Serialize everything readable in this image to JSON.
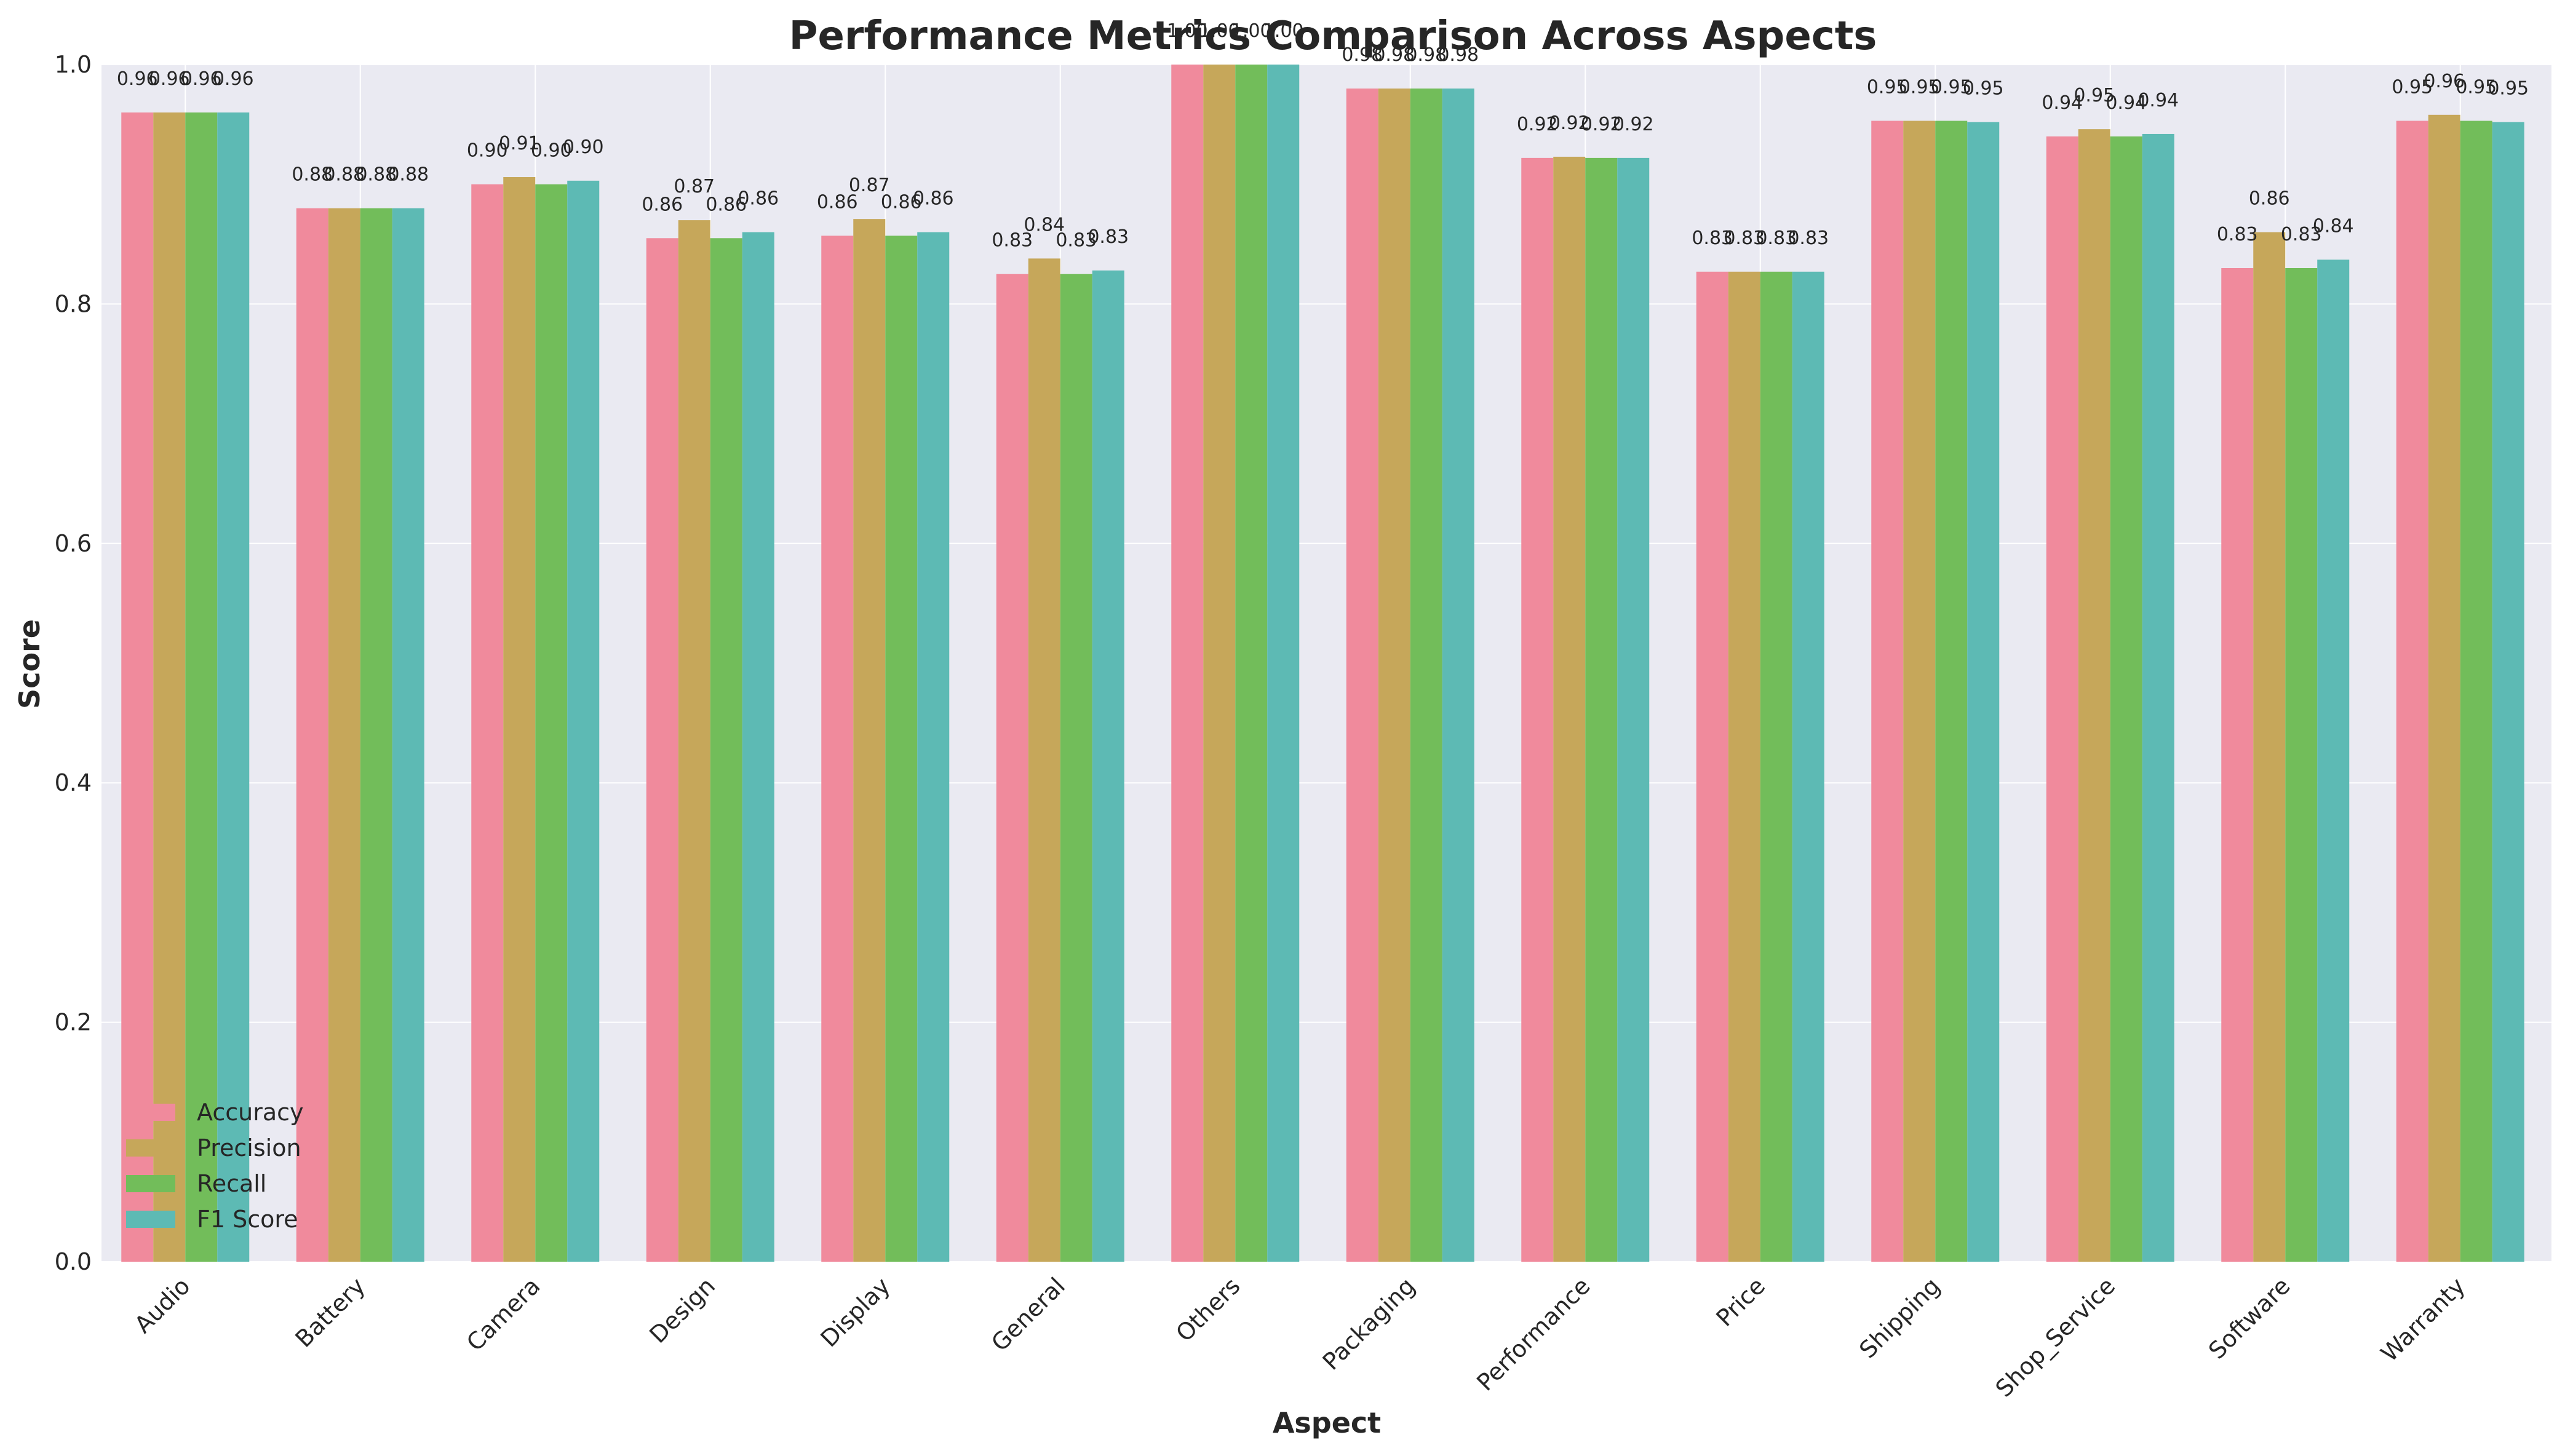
{
  "chart_data": {
    "type": "bar",
    "title": "Performance Metrics Comparison Across Aspects",
    "xlabel": "Aspect",
    "ylabel": "Score",
    "ylim": [
      0,
      1.0
    ],
    "yticks": [
      "0.0",
      "0.2",
      "0.4",
      "0.6",
      "0.8",
      "1.0"
    ],
    "grid": true,
    "legend_position": "lower-left",
    "categories": [
      "Audio",
      "Battery",
      "Camera",
      "Design",
      "Display",
      "General",
      "Others",
      "Packaging",
      "Performance",
      "Price",
      "Shipping",
      "Shop_Service",
      "Software",
      "Warranty"
    ],
    "series": [
      {
        "name": "Accuracy",
        "color": "#f08a9c",
        "values": [
          0.96,
          0.88,
          0.9,
          0.855,
          0.857,
          0.825,
          1.0,
          0.98,
          0.922,
          0.827,
          0.953,
          0.94,
          0.83,
          0.953
        ],
        "labels": [
          "0.96",
          "0.88",
          "0.90",
          "0.86",
          "0.86",
          "0.83",
          "1.00",
          "0.98",
          "0.92",
          "0.83",
          "0.95",
          "0.94",
          "0.83",
          "0.95"
        ]
      },
      {
        "name": "Precision",
        "color": "#c6a75a",
        "values": [
          0.96,
          0.88,
          0.906,
          0.87,
          0.871,
          0.838,
          1.0,
          0.98,
          0.923,
          0.827,
          0.953,
          0.946,
          0.86,
          0.958
        ],
        "labels": [
          "0.96",
          "0.88",
          "0.91",
          "0.87",
          "0.87",
          "0.84",
          "1.00",
          "0.98",
          "0.92",
          "0.83",
          "0.95",
          "0.95",
          "0.86",
          "0.96"
        ]
      },
      {
        "name": "Recall",
        "color": "#72bd5a",
        "values": [
          0.96,
          0.88,
          0.9,
          0.855,
          0.857,
          0.825,
          1.0,
          0.98,
          0.922,
          0.827,
          0.953,
          0.94,
          0.83,
          0.953
        ],
        "labels": [
          "0.96",
          "0.88",
          "0.90",
          "0.86",
          "0.86",
          "0.83",
          "1.00",
          "0.98",
          "0.92",
          "0.83",
          "0.95",
          "0.94",
          "0.83",
          "0.95"
        ]
      },
      {
        "name": "F1 Score",
        "color": "#5dbab4",
        "values": [
          0.96,
          0.88,
          0.903,
          0.86,
          0.86,
          0.828,
          1.0,
          0.98,
          0.922,
          0.827,
          0.952,
          0.942,
          0.837,
          0.952
        ],
        "labels": [
          "0.96",
          "0.88",
          "0.90",
          "0.86",
          "0.86",
          "0.83",
          "1.00",
          "0.98",
          "0.92",
          "0.83",
          "0.95",
          "0.94",
          "0.84",
          "0.95"
        ]
      }
    ]
  }
}
